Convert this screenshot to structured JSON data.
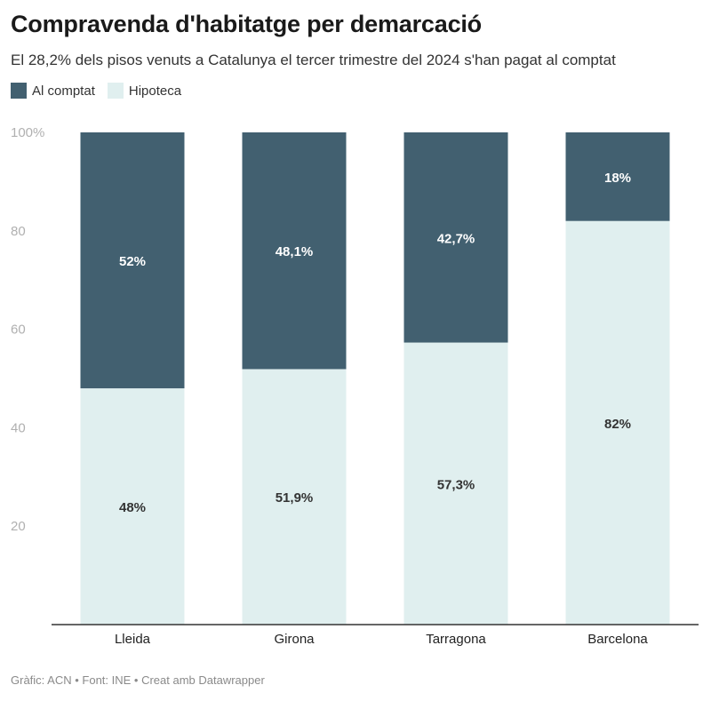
{
  "title": "Compravenda d'habitatge per demarcació",
  "subtitle": "El 28,2% dels pisos venuts a Catalunya el tercer trimestre del 2024 s'han pagat al comptat",
  "footer": "Gràfic: ACN • Font: INE • Creat amb Datawrapper",
  "colors": {
    "al_comptat": "#426070",
    "hipoteca": "#e0efef",
    "axis": "#333333",
    "tick": "#b0b0b0"
  },
  "legend": [
    {
      "label": "Al comptat",
      "color": "#426070"
    },
    {
      "label": "Hipoteca",
      "color": "#e0efef"
    }
  ],
  "chart_data": {
    "type": "bar",
    "stacked": true,
    "categories": [
      "Lleida",
      "Girona",
      "Tarragona",
      "Barcelona"
    ],
    "series": [
      {
        "name": "Hipoteca",
        "values": [
          48,
          51.9,
          57.3,
          82
        ],
        "labels": [
          "48%",
          "51,9%",
          "57,3%",
          "82%"
        ]
      },
      {
        "name": "Al comptat",
        "values": [
          52,
          48.1,
          42.7,
          18
        ],
        "labels": [
          "52%",
          "48,1%",
          "42,7%",
          "18%"
        ]
      }
    ],
    "ylim": [
      0,
      100
    ],
    "yticks": [
      20,
      40,
      60,
      80,
      100
    ],
    "ytick_labels": [
      "20",
      "40",
      "60",
      "80",
      "100%"
    ],
    "legend_position": "top-left",
    "grid": false
  }
}
